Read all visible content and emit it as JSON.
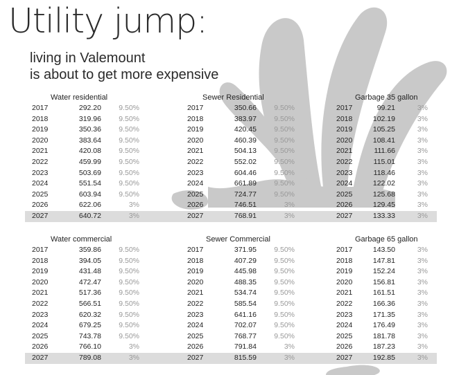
{
  "title": "Utility jump:",
  "subtitle": [
    "living in Valemount",
    "is about to get more expensive"
  ],
  "colors": {
    "splash": "#c9c9c9",
    "highlight_row": "#dcdcdc",
    "rate_text": "#999999"
  },
  "tables": [
    {
      "heading": "Water residential",
      "rows": [
        [
          "2017",
          "292.20",
          "9.50%"
        ],
        [
          "2018",
          "319.96",
          "9.50%"
        ],
        [
          "2019",
          "350.36",
          "9.50%"
        ],
        [
          "2020",
          "383.64",
          "9.50%"
        ],
        [
          "2021",
          "420.08",
          "9.50%"
        ],
        [
          "2022",
          "459.99",
          "9.50%"
        ],
        [
          "2023",
          "503.69",
          "9.50%"
        ],
        [
          "2024",
          "551.54",
          "9.50%"
        ],
        [
          "2025",
          "603.94",
          "9.50%"
        ],
        [
          "2026",
          "622.06",
          "3%"
        ],
        [
          "2027",
          "640.72",
          "3%"
        ]
      ]
    },
    {
      "heading": "Sewer Residential",
      "rows": [
        [
          "2017",
          "350.66",
          "9.50%"
        ],
        [
          "2018",
          "383.97",
          "9.50%"
        ],
        [
          "2019",
          "420.45",
          "9.50%"
        ],
        [
          "2020",
          "460.39",
          "9.50%"
        ],
        [
          "2021",
          "504.13",
          "9.50%"
        ],
        [
          "2022",
          "552.02",
          "9.50%"
        ],
        [
          "2023",
          "604.46",
          "9.50%"
        ],
        [
          "2024",
          "661.89",
          "9.50%"
        ],
        [
          "2025",
          "724.77",
          "9.50%"
        ],
        [
          "2026",
          "746.51",
          "3%"
        ],
        [
          "2027",
          "768.91",
          "3%"
        ]
      ]
    },
    {
      "heading": "Garbage 35 gallon",
      "rows": [
        [
          "2017",
          "99.21",
          "3%"
        ],
        [
          "2018",
          "102.19",
          "3%"
        ],
        [
          "2019",
          "105.25",
          "3%"
        ],
        [
          "2020",
          "108.41",
          "3%"
        ],
        [
          "2021",
          "111.66",
          "3%"
        ],
        [
          "2022",
          "115.01",
          "3%"
        ],
        [
          "2023",
          "118.46",
          "3%"
        ],
        [
          "2024",
          "122.02",
          "3%"
        ],
        [
          "2025",
          "125.68",
          "3%"
        ],
        [
          "2026",
          "129.45",
          "3%"
        ],
        [
          "2027",
          "133.33",
          "3%"
        ]
      ]
    },
    {
      "heading": "Water commercial",
      "rows": [
        [
          "2017",
          "359.86",
          "9.50%"
        ],
        [
          "2018",
          "394.05",
          "9.50%"
        ],
        [
          "2019",
          "431.48",
          "9.50%"
        ],
        [
          "2020",
          "472.47",
          "9.50%"
        ],
        [
          "2021",
          "517.36",
          "9.50%"
        ],
        [
          "2022",
          "566.51",
          "9.50%"
        ],
        [
          "2023",
          "620.32",
          "9.50%"
        ],
        [
          "2024",
          "679.25",
          "9.50%"
        ],
        [
          "2025",
          "743.78",
          "9.50%"
        ],
        [
          "2026",
          "766.10",
          "3%"
        ],
        [
          "2027",
          "789.08",
          "3%"
        ]
      ]
    },
    {
      "heading": "Sewer Commercial",
      "rows": [
        [
          "2017",
          "371.95",
          "9.50%"
        ],
        [
          "2018",
          "407.29",
          "9.50%"
        ],
        [
          "2019",
          "445.98",
          "9.50%"
        ],
        [
          "2020",
          "488.35",
          "9.50%"
        ],
        [
          "2021",
          "534.74",
          "9.50%"
        ],
        [
          "2022",
          "585.54",
          "9.50%"
        ],
        [
          "2023",
          "641.16",
          "9.50%"
        ],
        [
          "2024",
          "702.07",
          "9.50%"
        ],
        [
          "2025",
          "768.77",
          "9.50%"
        ],
        [
          "2026",
          "791.84",
          "3%"
        ],
        [
          "2027",
          "815.59",
          "3%"
        ]
      ]
    },
    {
      "heading": "Garbage 65 gallon",
      "rows": [
        [
          "2017",
          "143.50",
          "3%"
        ],
        [
          "2018",
          "147.81",
          "3%"
        ],
        [
          "2019",
          "152.24",
          "3%"
        ],
        [
          "2020",
          "156.81",
          "3%"
        ],
        [
          "2021",
          "161.51",
          "3%"
        ],
        [
          "2022",
          "166.36",
          "3%"
        ],
        [
          "2023",
          "171.35",
          "3%"
        ],
        [
          "2024",
          "176.49",
          "3%"
        ],
        [
          "2025",
          "181.78",
          "3%"
        ],
        [
          "2026",
          "187.23",
          "3%"
        ],
        [
          "2027",
          "192.85",
          "3%"
        ]
      ]
    }
  ]
}
